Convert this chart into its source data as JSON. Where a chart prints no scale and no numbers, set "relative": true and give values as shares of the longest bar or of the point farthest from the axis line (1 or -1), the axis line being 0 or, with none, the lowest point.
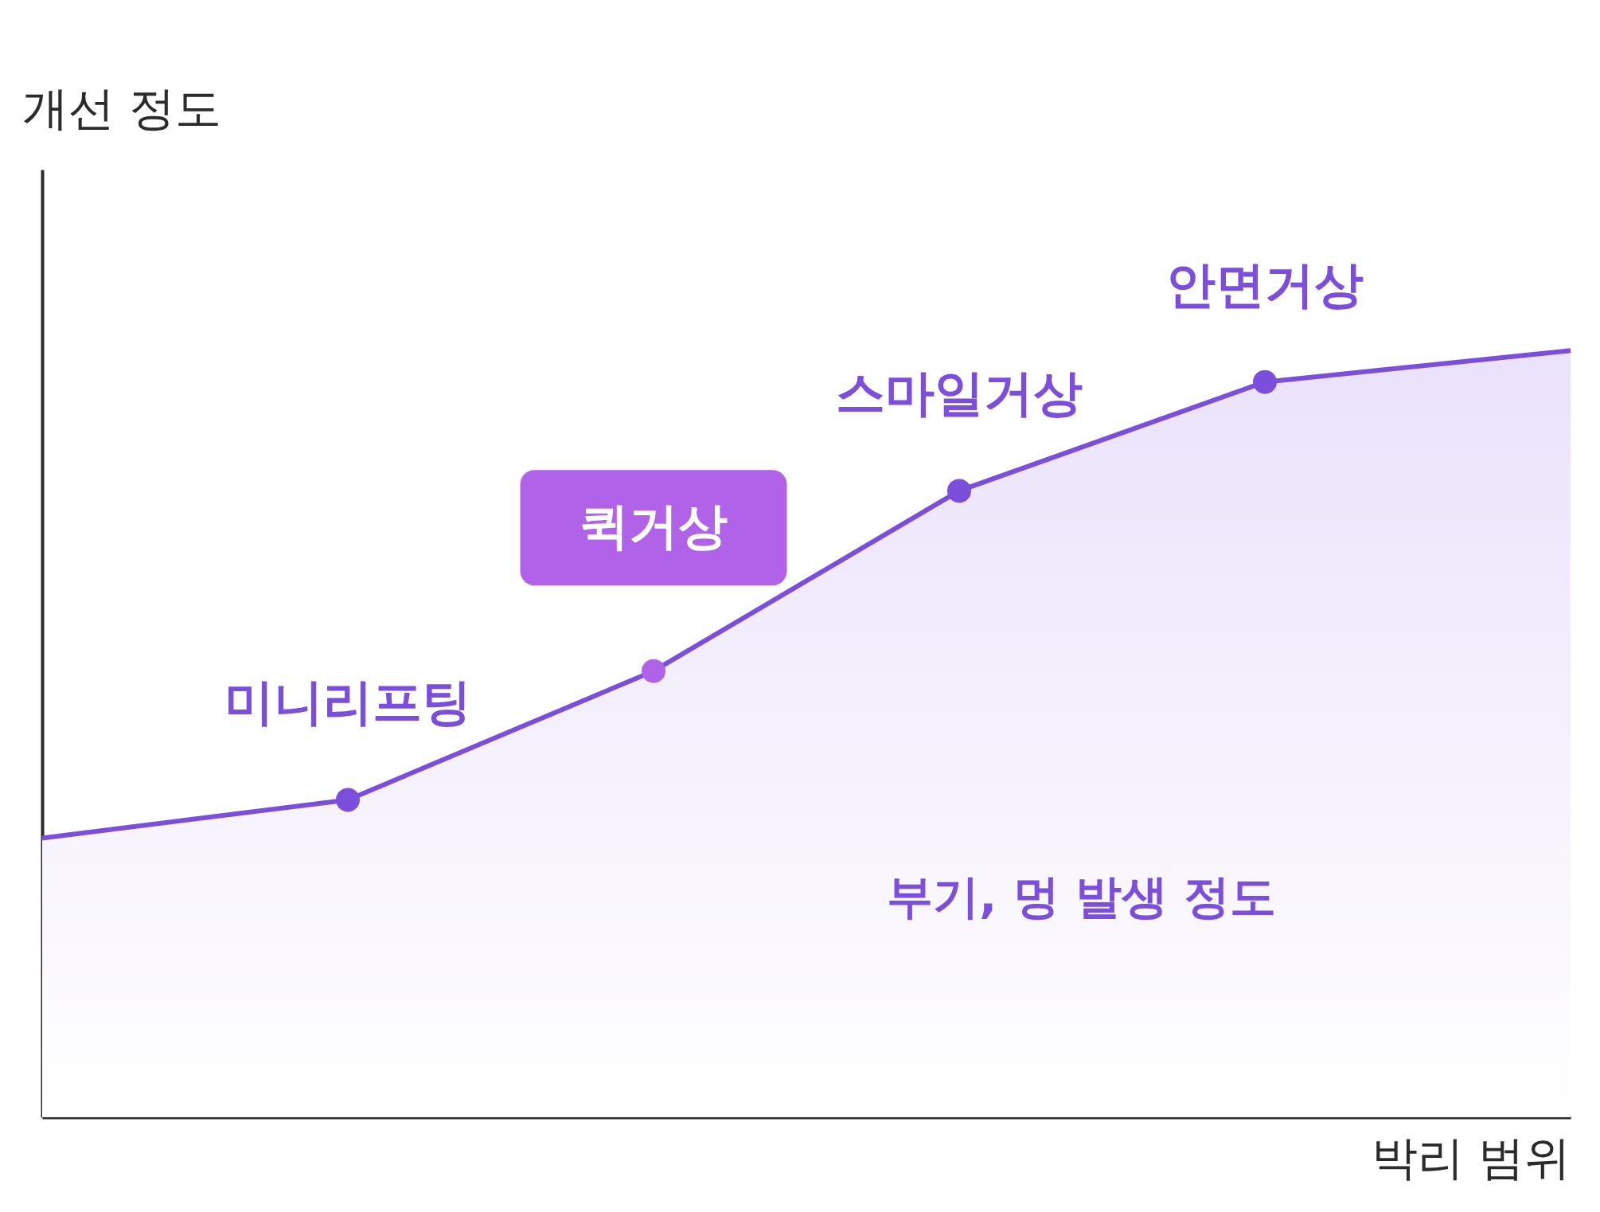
{
  "chart_data": {
    "type": "area",
    "relative": true,
    "xlabel": "박리 범위",
    "ylabel": "개선 정도",
    "categories": [
      null,
      "미니리프팅",
      "퀵거상",
      "스마일거상",
      "안면거상",
      null
    ],
    "series": [
      {
        "color": "#7b4fdb",
        "values": [
          0.364,
          0.414,
          0.582,
          0.817,
          0.959,
          1
        ],
        "colors": [
          "#7b4fdb",
          "#7b4fdb",
          "#b062e8",
          "#7b4fdb",
          "#7b4fdb",
          "#7b4fdb"
        ]
      }
    ],
    "marker": "circle",
    "annotations": [
      "부기, 멍 발생 정도"
    ]
  }
}
